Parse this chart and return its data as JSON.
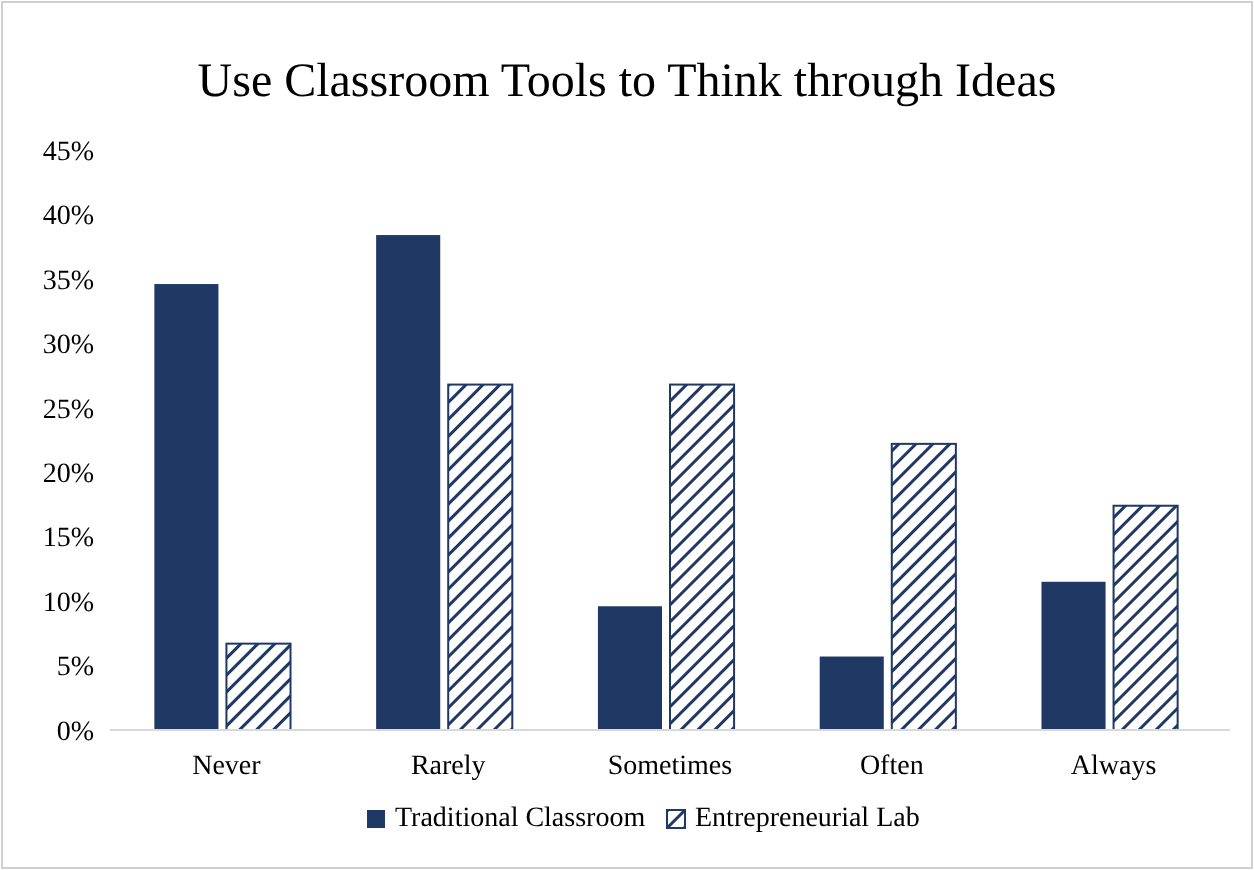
{
  "chart_data": {
    "type": "bar",
    "title": "Use Classroom Tools to Think through Ideas",
    "categories": [
      "Never",
      "Rarely",
      "Sometimes",
      "Often",
      "Always"
    ],
    "series": [
      {
        "name": "Traditional Classroom",
        "color": "#1f3864",
        "values": [
          34.6,
          38.4,
          9.6,
          5.7,
          11.5
        ]
      },
      {
        "name": "Entrepreneurial Lab",
        "color": "#1f3864",
        "values": [
          6.7,
          26.8,
          26.8,
          22.2,
          17.4
        ]
      }
    ],
    "ylim": [
      0,
      45
    ],
    "yticks": [
      {
        "value": 0,
        "label": "0%"
      },
      {
        "value": 5,
        "label": "5%"
      },
      {
        "value": 10,
        "label": "10%"
      },
      {
        "value": 15,
        "label": "15%"
      },
      {
        "value": 20,
        "label": "20%"
      },
      {
        "value": 25,
        "label": "25%"
      },
      {
        "value": 30,
        "label": "30%"
      },
      {
        "value": 35,
        "label": "35%"
      },
      {
        "value": 40,
        "label": "40%"
      },
      {
        "value": 45,
        "label": "45%"
      }
    ],
    "grid": false,
    "legend": "bottom"
  }
}
